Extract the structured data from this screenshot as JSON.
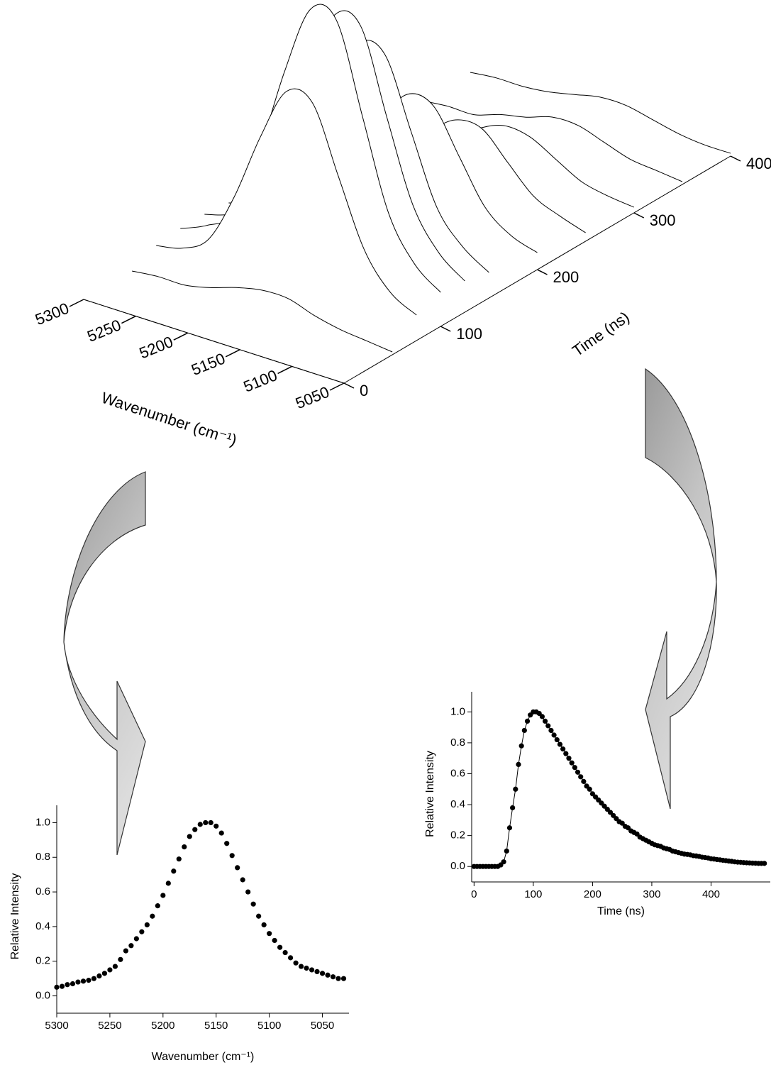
{
  "chart_data": [
    {
      "type": "waterfall",
      "x": [
        5300,
        5275,
        5250,
        5225,
        5200,
        5175,
        5150,
        5125,
        5100,
        5075,
        5050
      ],
      "y": [
        0,
        50,
        75,
        100,
        125,
        150,
        200,
        250,
        300,
        350,
        400
      ],
      "z": [
        [
          0,
          0,
          0,
          0,
          0,
          0,
          0,
          0,
          0,
          0,
          0
        ],
        [
          0,
          0.01,
          0.01,
          0.03,
          0.06,
          0.08,
          0.08,
          0.05,
          0.03,
          0.02,
          0.01
        ],
        [
          0.04,
          0.06,
          0.12,
          0.3,
          0.54,
          0.73,
          0.72,
          0.49,
          0.26,
          0.14,
          0.09
        ],
        [
          0.05,
          0.09,
          0.16,
          0.4,
          0.72,
          0.97,
          0.96,
          0.65,
          0.34,
          0.19,
          0.12
        ],
        [
          0.05,
          0.08,
          0.15,
          0.37,
          0.67,
          0.9,
          0.89,
          0.6,
          0.32,
          0.18,
          0.11
        ],
        [
          0.04,
          0.07,
          0.12,
          0.31,
          0.55,
          0.75,
          0.74,
          0.5,
          0.26,
          0.15,
          0.09
        ],
        [
          0.02,
          0.04,
          0.08,
          0.19,
          0.35,
          0.47,
          0.46,
          0.31,
          0.16,
          0.09,
          0.06
        ],
        [
          0.01,
          0.02,
          0.05,
          0.12,
          0.21,
          0.28,
          0.28,
          0.19,
          0.1,
          0.06,
          0.03
        ],
        [
          0.01,
          0.01,
          0.03,
          0.06,
          0.12,
          0.16,
          0.15,
          0.1,
          0.05,
          0.03,
          0.02
        ],
        [
          0,
          0.01,
          0.01,
          0.04,
          0.06,
          0.09,
          0.09,
          0.06,
          0.03,
          0.02,
          0.01
        ],
        [
          0,
          0.01,
          0.01,
          0.02,
          0.04,
          0.06,
          0.06,
          0.04,
          0.02,
          0.01,
          0.01
        ]
      ],
      "xlim": [
        5300,
        5050
      ],
      "ylim": [
        0,
        400
      ],
      "xticks": [
        5300,
        5250,
        5200,
        5150,
        5100,
        5050
      ],
      "yticks": [
        0,
        100,
        200,
        300,
        400
      ],
      "xlabel": "Wavenumber (cm⁻¹)",
      "ylabel": "Time (ns)",
      "color": "#000000"
    },
    {
      "type": "scatter",
      "x": [
        5300,
        5295,
        5290,
        5285,
        5280,
        5275,
        5270,
        5265,
        5260,
        5255,
        5250,
        5245,
        5240,
        5235,
        5230,
        5225,
        5220,
        5215,
        5210,
        5205,
        5200,
        5195,
        5190,
        5185,
        5180,
        5175,
        5170,
        5165,
        5160,
        5155,
        5150,
        5145,
        5140,
        5135,
        5130,
        5125,
        5120,
        5115,
        5110,
        5105,
        5100,
        5095,
        5090,
        5085,
        5080,
        5075,
        5070,
        5065,
        5060,
        5055,
        5050,
        5045,
        5040,
        5035,
        5030
      ],
      "y": [
        0.05,
        0.055,
        0.065,
        0.07,
        0.08,
        0.085,
        0.09,
        0.1,
        0.115,
        0.13,
        0.15,
        0.17,
        0.21,
        0.26,
        0.29,
        0.33,
        0.37,
        0.41,
        0.46,
        0.52,
        0.58,
        0.65,
        0.72,
        0.79,
        0.86,
        0.92,
        0.96,
        0.99,
        1.0,
        1.0,
        0.98,
        0.94,
        0.88,
        0.81,
        0.74,
        0.67,
        0.6,
        0.53,
        0.46,
        0.41,
        0.36,
        0.32,
        0.28,
        0.25,
        0.22,
        0.19,
        0.17,
        0.16,
        0.15,
        0.14,
        0.13,
        0.12,
        0.11,
        0.1,
        0.1
      ],
      "xlim": [
        5300,
        5025
      ],
      "ylim": [
        -0.1,
        1.1
      ],
      "xticks": [
        5300,
        5250,
        5200,
        5150,
        5100,
        5050
      ],
      "yticks": [
        {
          "value": 0,
          "label": "0.0"
        },
        0.2,
        0.4,
        0.6,
        0.8,
        {
          "value": 1,
          "label": "1.0"
        }
      ],
      "xlabel": "Wavenumber (cm⁻¹)",
      "ylabel": "Relative Intensity",
      "color": "#000000",
      "line": false
    },
    {
      "type": "scatter",
      "x": [
        0,
        5,
        10,
        15,
        20,
        25,
        30,
        35,
        40,
        45,
        50,
        55,
        60,
        65,
        70,
        75,
        80,
        85,
        90,
        95,
        100,
        105,
        110,
        115,
        120,
        125,
        130,
        135,
        140,
        145,
        150,
        155,
        160,
        165,
        170,
        175,
        180,
        185,
        190,
        195,
        200,
        205,
        210,
        215,
        220,
        225,
        230,
        235,
        240,
        245,
        250,
        255,
        260,
        265,
        270,
        275,
        280,
        285,
        290,
        295,
        300,
        305,
        310,
        315,
        320,
        325,
        330,
        335,
        340,
        345,
        350,
        355,
        360,
        365,
        370,
        375,
        380,
        385,
        390,
        395,
        400,
        405,
        410,
        415,
        420,
        425,
        430,
        435,
        440,
        445,
        450,
        455,
        460,
        465,
        470,
        475,
        480,
        485,
        490
      ],
      "y": [
        0,
        0,
        0,
        0,
        0,
        0,
        0,
        0,
        0,
        0.01,
        0.03,
        0.1,
        0.25,
        0.38,
        0.5,
        0.66,
        0.78,
        0.88,
        0.94,
        0.98,
        1.0,
        1.0,
        0.99,
        0.97,
        0.94,
        0.91,
        0.88,
        0.85,
        0.82,
        0.79,
        0.76,
        0.73,
        0.7,
        0.67,
        0.64,
        0.61,
        0.58,
        0.55,
        0.52,
        0.5,
        0.47,
        0.45,
        0.43,
        0.41,
        0.39,
        0.37,
        0.35,
        0.33,
        0.31,
        0.29,
        0.28,
        0.26,
        0.25,
        0.23,
        0.22,
        0.21,
        0.19,
        0.18,
        0.17,
        0.16,
        0.15,
        0.14,
        0.135,
        0.13,
        0.12,
        0.115,
        0.11,
        0.1,
        0.095,
        0.09,
        0.085,
        0.08,
        0.078,
        0.075,
        0.07,
        0.068,
        0.065,
        0.06,
        0.058,
        0.055,
        0.05,
        0.048,
        0.045,
        0.043,
        0.04,
        0.038,
        0.035,
        0.033,
        0.03,
        0.028,
        0.027,
        0.025,
        0.024,
        0.023,
        0.022,
        0.021,
        0.02,
        0.02,
        0.02
      ],
      "xlim": [
        -4,
        500
      ],
      "ylim": [
        -0.1,
        1.13
      ],
      "xticks": [
        0,
        100,
        200,
        300,
        400
      ],
      "yticks": [
        {
          "value": 0,
          "label": "0.0"
        },
        0.2,
        0.4,
        0.6,
        0.8,
        {
          "value": 1,
          "label": "1.0"
        }
      ],
      "xlabel": "Time (ns)",
      "ylabel": "Relative Intensity",
      "color": "#000000",
      "line": true
    }
  ]
}
